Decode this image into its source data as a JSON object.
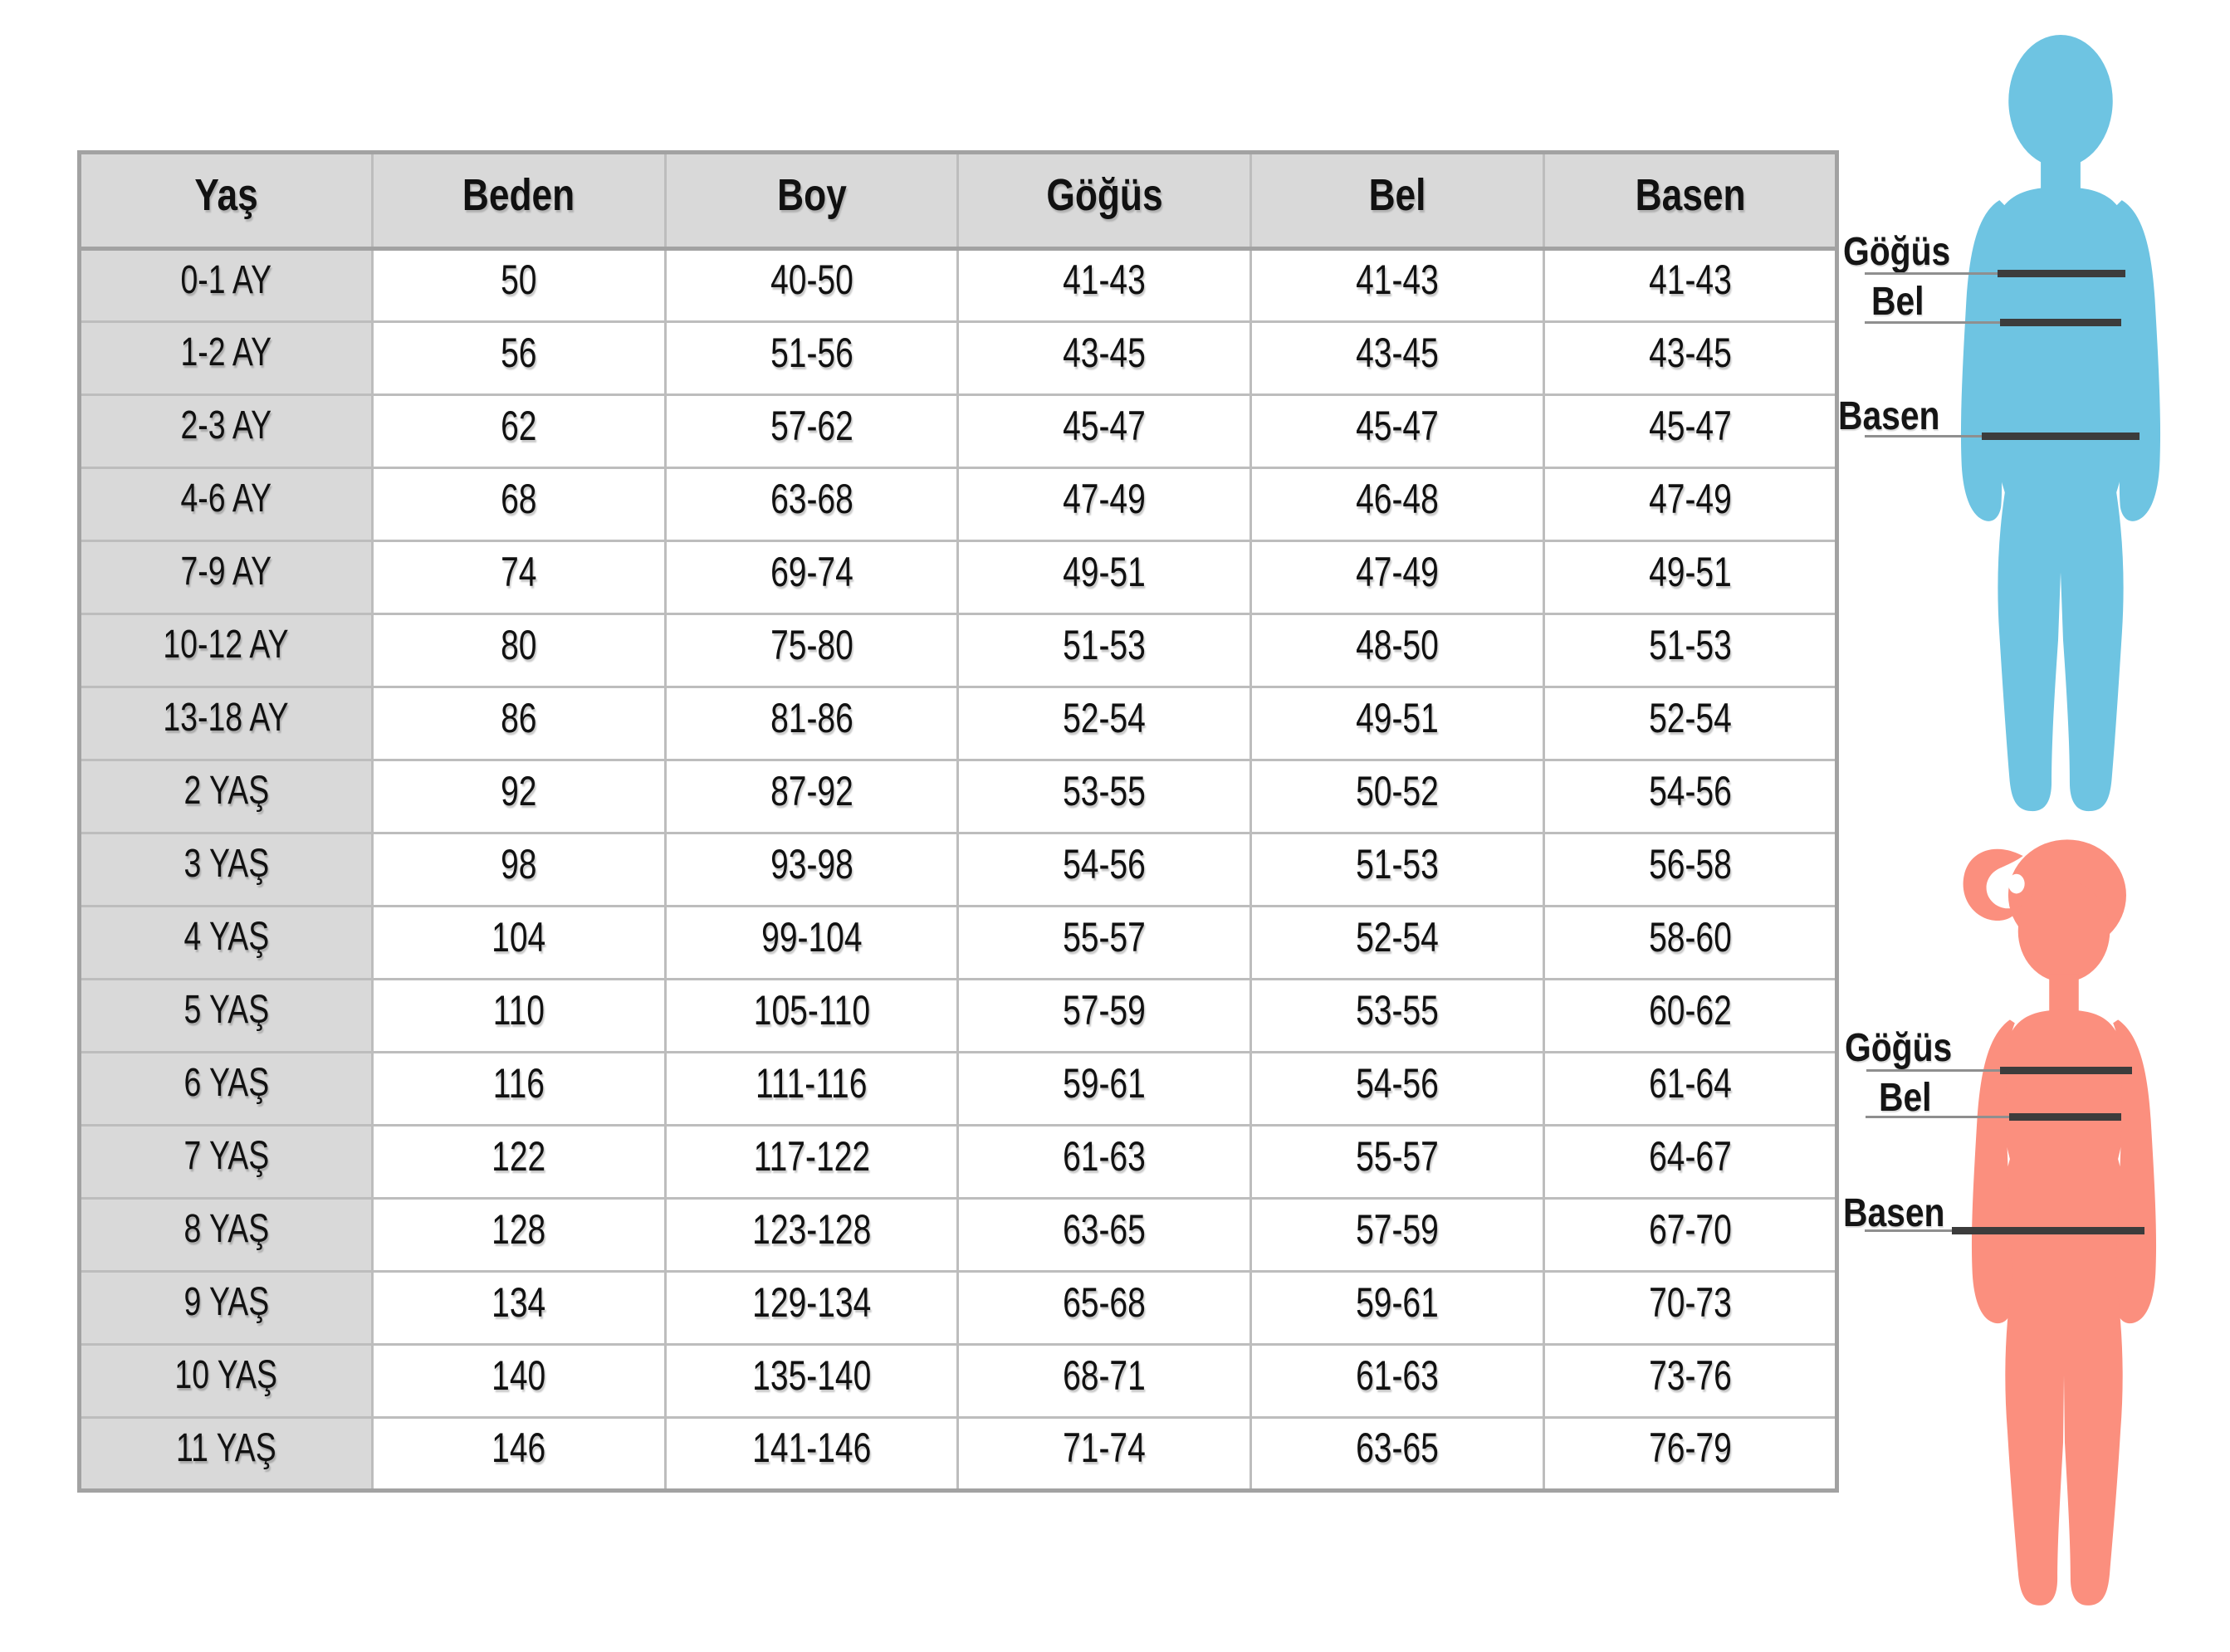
{
  "table": {
    "headers": [
      "Yaş",
      "Beden",
      "Boy",
      "Göğüs",
      "Bel",
      "Basen"
    ],
    "rows": [
      [
        "0-1 AY",
        "50",
        "40-50",
        "41-43",
        "41-43",
        "41-43"
      ],
      [
        "1-2 AY",
        "56",
        "51-56",
        "43-45",
        "43-45",
        "43-45"
      ],
      [
        "2-3 AY",
        "62",
        "57-62",
        "45-47",
        "45-47",
        "45-47"
      ],
      [
        "4-6 AY",
        "68",
        "63-68",
        "47-49",
        "46-48",
        "47-49"
      ],
      [
        "7-9 AY",
        "74",
        "69-74",
        "49-51",
        "47-49",
        "49-51"
      ],
      [
        "10-12 AY",
        "80",
        "75-80",
        "51-53",
        "48-50",
        "51-53"
      ],
      [
        "13-18 AY",
        "86",
        "81-86",
        "52-54",
        "49-51",
        "52-54"
      ],
      [
        "2 YAŞ",
        "92",
        "87-92",
        "53-55",
        "50-52",
        "54-56"
      ],
      [
        "3 YAŞ",
        "98",
        "93-98",
        "54-56",
        "51-53",
        "56-58"
      ],
      [
        "4 YAŞ",
        "104",
        "99-104",
        "55-57",
        "52-54",
        "58-60"
      ],
      [
        "5 YAŞ",
        "110",
        "105-110",
        "57-59",
        "53-55",
        "60-62"
      ],
      [
        "6 YAŞ",
        "116",
        "111-116",
        "59-61",
        "54-56",
        "61-64"
      ],
      [
        "7 YAŞ",
        "122",
        "117-122",
        "61-63",
        "55-57",
        "64-67"
      ],
      [
        "8 YAŞ",
        "128",
        "123-128",
        "63-65",
        "57-59",
        "67-70"
      ],
      [
        "9 YAŞ",
        "134",
        "129-134",
        "65-68",
        "59-61",
        "70-73"
      ],
      [
        "10 YAŞ",
        "140",
        "135-140",
        "68-71",
        "61-63",
        "73-76"
      ],
      [
        "11 YAŞ",
        "146",
        "141-146",
        "71-74",
        "63-65",
        "76-79"
      ]
    ]
  },
  "boy_figure": {
    "chest_label": "Göğüs",
    "waist_label": "Bel",
    "hip_label": "Basen"
  },
  "girl_figure": {
    "chest_label": "Göğüs",
    "waist_label": "Bel",
    "hip_label": "Basen"
  },
  "colors": {
    "boy": "#6ec4e2",
    "girl": "#fb8f7e",
    "header_bg": "#d9d9d9",
    "row_label_bg": "#d9d9d9",
    "grid": "#bdbdbd",
    "outer_border": "#a2a2a2",
    "measure_line": "#3c3c3c",
    "label_underline": "#8f8f8f",
    "text": "#111111"
  }
}
